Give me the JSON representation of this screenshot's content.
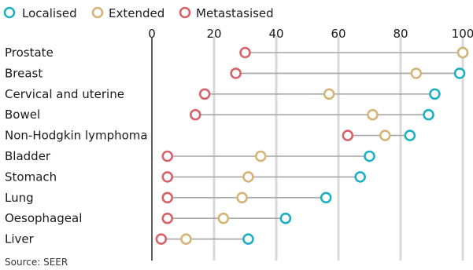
{
  "colors": {
    "localised": "#1fb0c4",
    "extended": "#d4b577",
    "metastasised": "#d8626a",
    "connector": "#a6a6a6",
    "grid": "#d9d9d9",
    "axis": "#1a1a1a"
  },
  "source": "Source: SEER",
  "chart_data": {
    "type": "dot-range",
    "xlim": [
      0,
      100
    ],
    "ticks": [
      0,
      20,
      40,
      60,
      80,
      100
    ],
    "grid": true,
    "legend": "top-left",
    "categories": [
      "Prostate",
      "Breast",
      "Cervical and uterine",
      "Bowel",
      "Non-Hodgkin lymphoma",
      "Bladder",
      "Stomach",
      "Lung",
      "Oesophageal",
      "Liver"
    ],
    "series": [
      {
        "name": "Localised",
        "color_key": "localised",
        "values": [
          100,
          99,
          91,
          89,
          83,
          70,
          67,
          56,
          43,
          31
        ]
      },
      {
        "name": "Extended",
        "color_key": "extended",
        "values": [
          100,
          85,
          57,
          71,
          75,
          35,
          31,
          29,
          23,
          11
        ]
      },
      {
        "name": "Metastasised",
        "color_key": "metastasised",
        "values": [
          30,
          27,
          17,
          14,
          63,
          5,
          5,
          5,
          5,
          3
        ]
      }
    ]
  }
}
